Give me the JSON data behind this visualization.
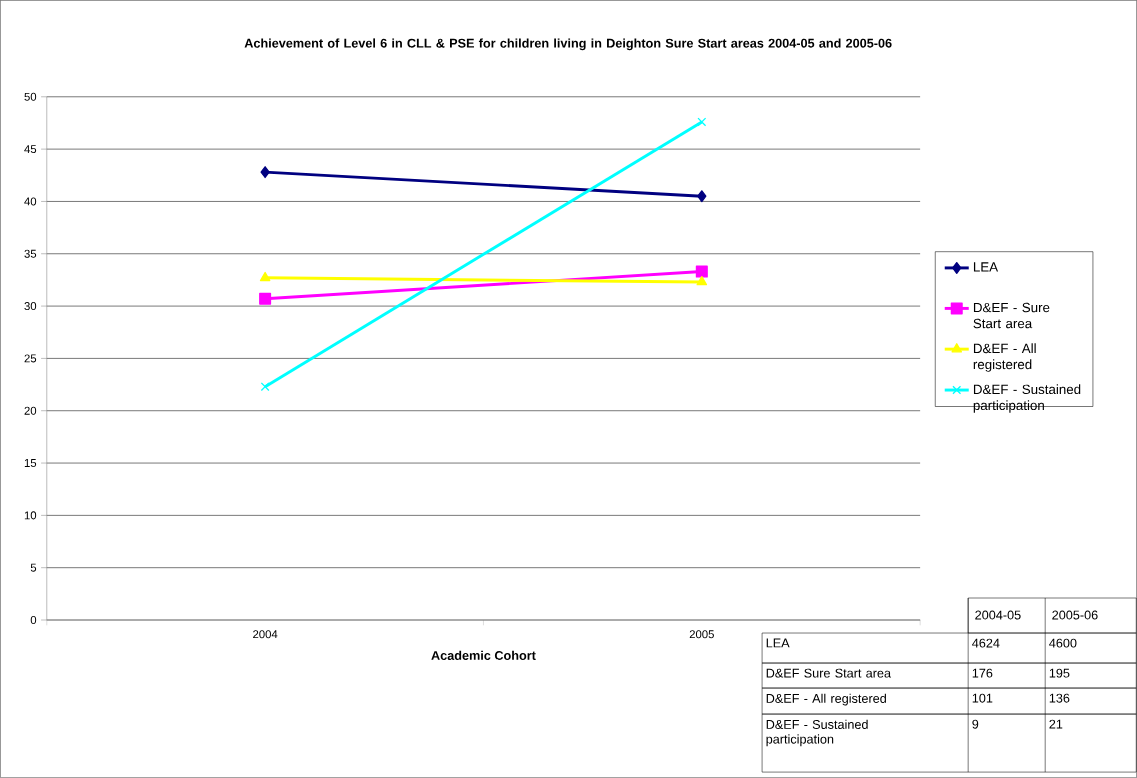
{
  "chart_data": [
    {
      "type": "line",
      "title": "Achievement of Level 6 in CLL & PSE for children living in Deighton Sure Start areas 2004-05 and 2005-06",
      "xlabel": "Academic Cohort",
      "categories": [
        "2004",
        "2005"
      ],
      "series": [
        {
          "name": "LEA",
          "color": "#000080",
          "marker": "diamond",
          "values": [
            42.8,
            40.5
          ]
        },
        {
          "name": "D&EF - Sure Start area",
          "color": "#ff00ff",
          "marker": "square",
          "values": [
            30.7,
            33.3
          ]
        },
        {
          "name": "D&EF - All registered",
          "color": "#ffff00",
          "marker": "triangle",
          "values": [
            32.7,
            32.3
          ]
        },
        {
          "name": "D&EF - Sustained participation",
          "color": "#00ffff",
          "marker": "cross",
          "values": [
            22.3,
            47.6
          ]
        }
      ],
      "ylim": [
        0,
        50
      ],
      "yticks": [
        0,
        5,
        10,
        15,
        20,
        25,
        30,
        35,
        40,
        45,
        50
      ],
      "grid": "y",
      "legend": "right",
      "line_style": "solid"
    },
    {
      "type": "other",
      "data_labels": true,
      "categories": [
        "2004-05",
        "2005-06"
      ],
      "series": [
        {
          "name": "LEA",
          "values": [
            4624,
            4600
          ]
        },
        {
          "name": "D&EF Sure Start area",
          "values": [
            176,
            195
          ]
        },
        {
          "name": "D&EF - All registered",
          "values": [
            101,
            136
          ]
        },
        {
          "name": "D&EF - Sustained participation",
          "values": [
            9,
            21
          ]
        }
      ]
    }
  ]
}
